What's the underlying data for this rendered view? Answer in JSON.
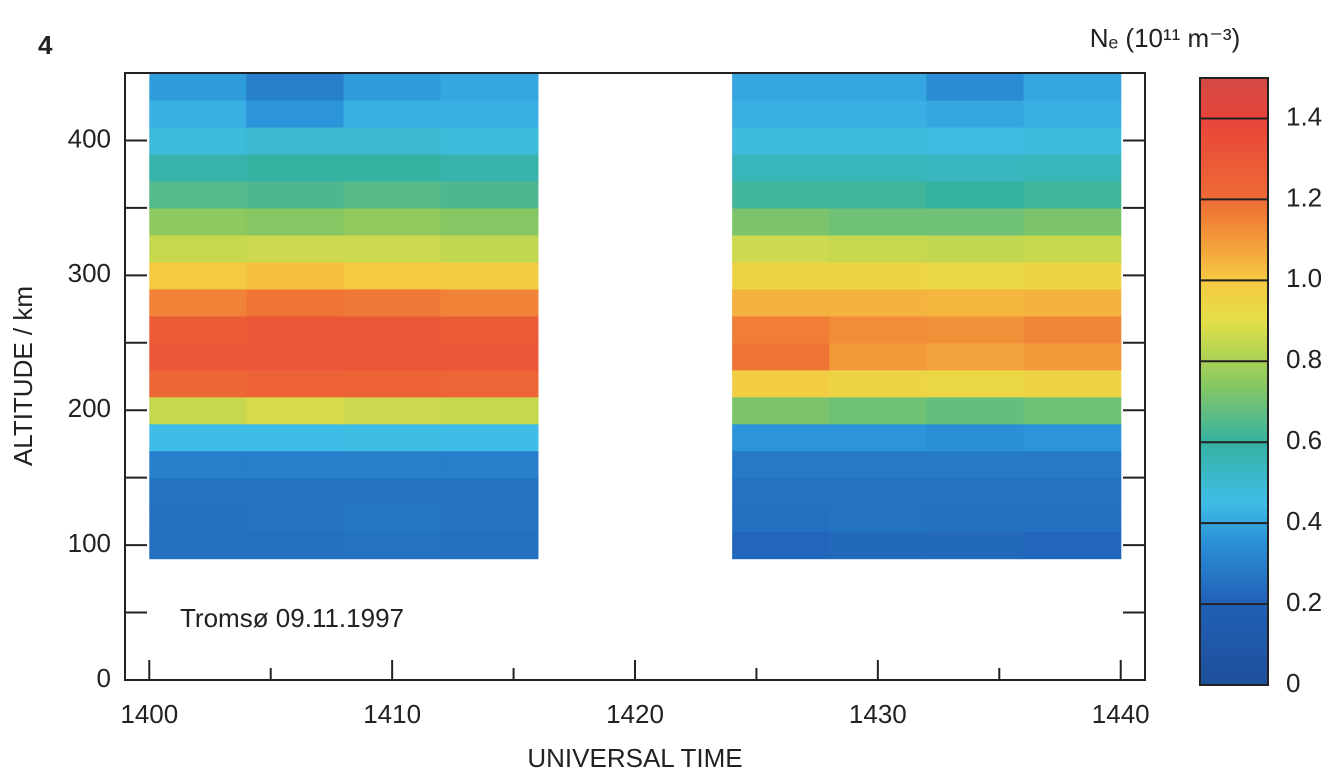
{
  "chart_data": {
    "type": "heatmap",
    "panel_label": "4",
    "colorbar_label": "Nₑ (10¹¹ m⁻³)",
    "annotation": "Tromsø 09.11.1997",
    "xlabel": "UNIVERSAL TIME",
    "ylabel": "ALTITUDE / km",
    "xlim": [
      1399,
      1441
    ],
    "ylim": [
      0,
      450
    ],
    "xticks": [
      1400,
      1410,
      1420,
      1430,
      1440
    ],
    "xminor_ticks": [
      1405,
      1415,
      1425,
      1435
    ],
    "yticks": [
      0,
      100,
      200,
      300,
      400
    ],
    "yminor_ticks": [
      50,
      150,
      250,
      350
    ],
    "x_bins": [
      1400,
      1404,
      1408,
      1412,
      1416,
      1420,
      1424,
      1428,
      1432,
      1436,
      1440
    ],
    "y_bins": [
      90,
      110,
      130,
      150,
      170,
      190,
      210,
      230,
      250,
      270,
      290,
      310,
      330,
      350,
      370,
      390,
      410,
      430,
      450
    ],
    "values": [
      [
        0.25,
        0.25,
        0.26,
        0.25,
        null,
        null,
        0.22,
        0.23,
        0.23,
        0.22
      ],
      [
        0.25,
        0.26,
        0.27,
        0.26,
        null,
        null,
        0.25,
        0.26,
        0.25,
        0.25
      ],
      [
        0.26,
        0.26,
        0.26,
        0.26,
        null,
        null,
        0.26,
        0.26,
        0.26,
        0.26
      ],
      [
        0.3,
        0.3,
        0.3,
        0.3,
        null,
        null,
        0.28,
        0.28,
        0.28,
        0.28
      ],
      [
        0.45,
        0.45,
        0.46,
        0.45,
        null,
        null,
        0.36,
        0.36,
        0.35,
        0.36
      ],
      [
        0.85,
        0.88,
        0.86,
        0.85,
        null,
        null,
        0.72,
        0.7,
        0.68,
        0.7
      ],
      [
        1.22,
        1.25,
        1.24,
        1.23,
        null,
        null,
        0.98,
        0.95,
        0.94,
        0.96
      ],
      [
        1.3,
        1.3,
        1.3,
        1.3,
        null,
        null,
        1.18,
        1.1,
        1.08,
        1.1
      ],
      [
        1.28,
        1.3,
        1.3,
        1.28,
        null,
        null,
        1.16,
        1.13,
        1.12,
        1.14
      ],
      [
        1.15,
        1.18,
        1.17,
        1.15,
        null,
        null,
        1.05,
        1.05,
        1.04,
        1.05
      ],
      [
        1.0,
        1.02,
        1.0,
        0.98,
        null,
        null,
        0.95,
        0.95,
        0.94,
        0.95
      ],
      [
        0.85,
        0.86,
        0.86,
        0.84,
        null,
        null,
        0.86,
        0.85,
        0.84,
        0.85
      ],
      [
        0.75,
        0.74,
        0.76,
        0.74,
        null,
        null,
        0.72,
        0.7,
        0.7,
        0.72
      ],
      [
        0.65,
        0.64,
        0.66,
        0.64,
        null,
        null,
        0.62,
        0.62,
        0.6,
        0.62
      ],
      [
        0.58,
        0.6,
        0.6,
        0.58,
        null,
        null,
        0.55,
        0.55,
        0.54,
        0.55
      ],
      [
        0.48,
        0.5,
        0.5,
        0.48,
        null,
        null,
        0.48,
        0.48,
        0.46,
        0.48
      ],
      [
        0.42,
        0.36,
        0.42,
        0.42,
        null,
        null,
        0.42,
        0.42,
        0.4,
        0.42
      ],
      [
        0.38,
        0.3,
        0.38,
        0.4,
        null,
        null,
        0.4,
        0.4,
        0.34,
        0.4
      ]
    ],
    "clim": [
      0,
      1.5
    ],
    "colorbar_ticks": [
      0,
      0.2,
      0.4,
      0.6,
      0.8,
      {
        "value": 1,
        "label": "1.0"
      },
      1.2,
      1.4
    ],
    "colorscale": [
      [
        0,
        "#1f4f9a"
      ],
      [
        0.2,
        "#2060b6"
      ],
      [
        0.35,
        "#2a8fd6"
      ],
      [
        0.45,
        "#3fbde8"
      ],
      [
        0.6,
        "#36b2a2"
      ],
      [
        0.75,
        "#8cc95e"
      ],
      [
        0.9,
        "#e4df48"
      ],
      [
        1.0,
        "#f6c942"
      ],
      [
        1.1,
        "#f29a3a"
      ],
      [
        1.2,
        "#ee6b35"
      ],
      [
        1.4,
        "#e8443a"
      ],
      [
        1.5,
        "#d24a44"
      ]
    ]
  }
}
